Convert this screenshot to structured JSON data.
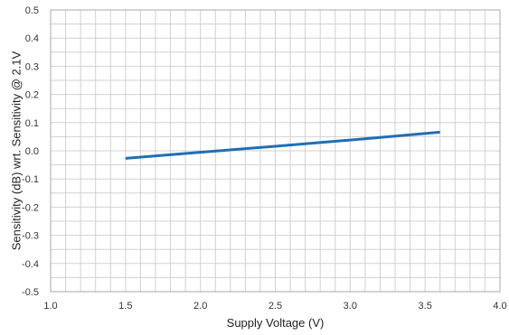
{
  "chart_data": {
    "type": "line",
    "title": "",
    "xlabel": "Supply Voltage (V)",
    "ylabel": "Sensitivity (dB) wrt. Sensitivity @ 2.1V",
    "xlim": [
      1.0,
      4.0
    ],
    "ylim": [
      -0.5,
      0.5
    ],
    "x_ticks": [
      "1.0",
      "1.5",
      "2.0",
      "2.5",
      "3.0",
      "3.5",
      "4.0"
    ],
    "y_ticks": [
      "0.5",
      "0.4",
      "0.3",
      "0.2",
      "0.1",
      "0.0",
      "-0.1",
      "-0.2",
      "-0.3",
      "-0.4",
      "-0.5"
    ],
    "x_ticks_values": [
      1.0,
      1.5,
      2.0,
      2.5,
      3.0,
      3.5,
      4.0
    ],
    "y_ticks_values": [
      0.5,
      0.4,
      0.3,
      0.2,
      0.1,
      0.0,
      -0.1,
      -0.2,
      -0.3,
      -0.4,
      -0.5
    ],
    "x_minor_step": 0.1,
    "y_minor_step": 0.05,
    "grid": true,
    "legend": "none",
    "series": [
      {
        "color": "#1f6fb4",
        "x": [
          1.5,
          2.0,
          2.5,
          3.0,
          3.6
        ],
        "y": [
          -0.027,
          -0.005,
          0.016,
          0.038,
          0.066
        ]
      }
    ]
  }
}
